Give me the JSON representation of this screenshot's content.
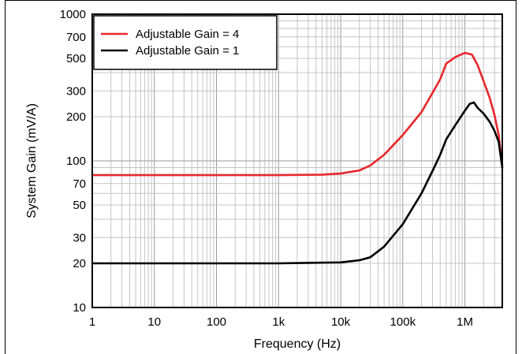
{
  "chart_data": {
    "type": "line",
    "title": "",
    "xlabel": "Frequency (Hz)",
    "ylabel": "System Gain (mV/A)",
    "x_scale": "log",
    "y_scale": "log",
    "xlim": [
      1,
      4000000
    ],
    "ylim": [
      10,
      1000
    ],
    "x_ticks": [
      {
        "value": 1,
        "label": "1"
      },
      {
        "value": 10,
        "label": "10"
      },
      {
        "value": 100,
        "label": "100"
      },
      {
        "value": 1000,
        "label": "1k"
      },
      {
        "value": 10000,
        "label": "10k"
      },
      {
        "value": 100000,
        "label": "100k"
      },
      {
        "value": 1000000,
        "label": "1M"
      }
    ],
    "y_ticks": [
      {
        "value": 10,
        "label": "10"
      },
      {
        "value": 20,
        "label": "20"
      },
      {
        "value": 30,
        "label": "30"
      },
      {
        "value": 50,
        "label": "50"
      },
      {
        "value": 70,
        "label": "70"
      },
      {
        "value": 100,
        "label": "100"
      },
      {
        "value": 200,
        "label": "200"
      },
      {
        "value": 300,
        "label": "300"
      },
      {
        "value": 500,
        "label": "500"
      },
      {
        "value": 700,
        "label": "700"
      },
      {
        "value": 1000,
        "label": "1000"
      }
    ],
    "grid": true,
    "legend_position": "top-left",
    "series": [
      {
        "name": "Adjustable Gain = 4",
        "color": "#e8262b",
        "x": [
          1,
          1000,
          5000,
          10000,
          20000,
          30000,
          50000,
          100000,
          200000,
          300000,
          400000,
          500000,
          700000,
          1000000,
          1300000,
          1600000,
          2000000,
          2500000,
          3000000,
          3500000,
          4000000
        ],
        "y": [
          80,
          80,
          80.5,
          82,
          86,
          93,
          110,
          150,
          215,
          290,
          360,
          460,
          510,
          545,
          530,
          450,
          350,
          270,
          205,
          150,
          92
        ]
      },
      {
        "name": "Adjustable Gain = 1",
        "color": "#000000",
        "x": [
          1,
          1000,
          10000,
          20000,
          30000,
          50000,
          100000,
          200000,
          300000,
          400000,
          500000,
          700000,
          1000000,
          1200000,
          1400000,
          1600000,
          2000000,
          2500000,
          3000000,
          3500000,
          4000000
        ],
        "y": [
          20,
          20,
          20.3,
          21,
          22,
          26,
          37,
          60,
          85,
          110,
          140,
          175,
          220,
          245,
          250,
          230,
          210,
          185,
          160,
          135,
          90
        ]
      }
    ]
  }
}
